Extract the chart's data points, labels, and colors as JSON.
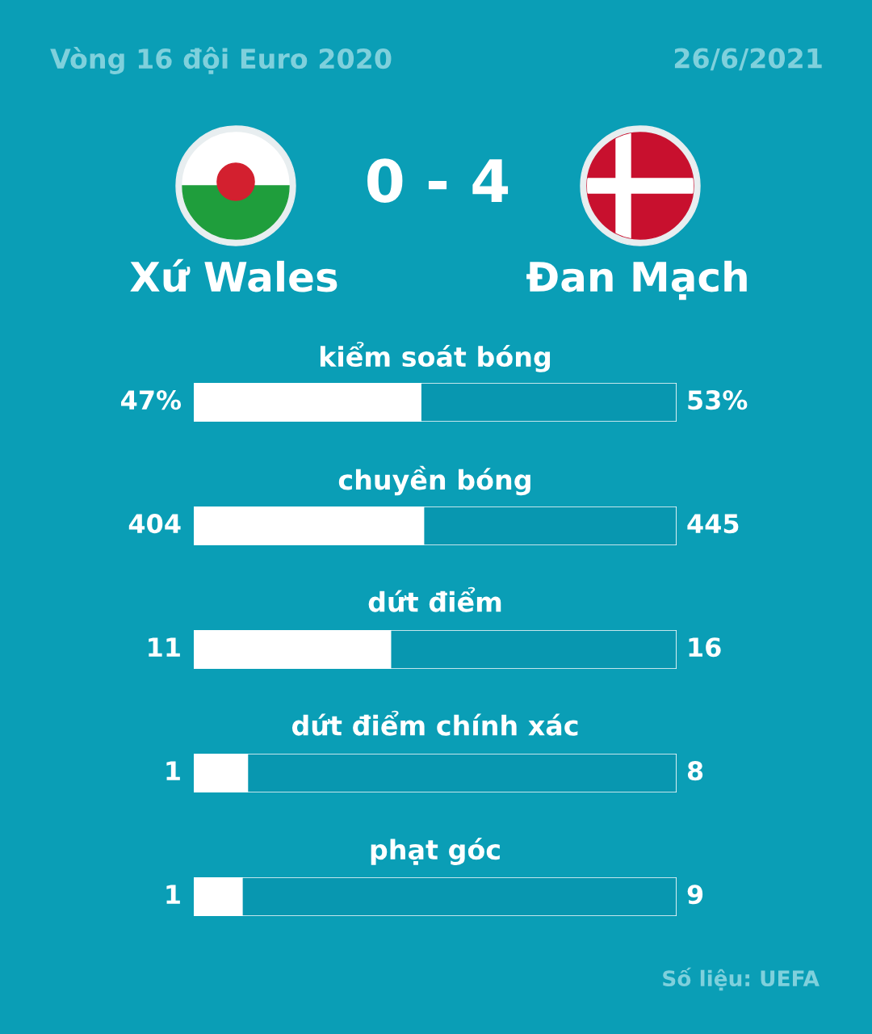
{
  "chart_data": [
    {
      "type": "bar",
      "orientation": "horizontal",
      "stacked": true,
      "legend": false,
      "tick_labels": false,
      "title": "Vòng 16 đội Euro 2020",
      "subtitle": "26/6/2021",
      "annotations": [
        "0 - 4",
        "Số liệu: UEFA"
      ],
      "categories": [
        "kiểm soát bóng"
      ],
      "xlim": [
        0,
        100
      ],
      "series": [
        {
          "name": "Xứ Wales",
          "color": "#ffffff",
          "values": [
            47
          ],
          "value_labels": [
            "47%"
          ]
        },
        {
          "name": "Đan Mạch",
          "color": "#0897b0",
          "values": [
            53
          ],
          "value_labels": [
            "53%"
          ]
        }
      ]
    },
    {
      "type": "bar",
      "orientation": "horizontal",
      "stacked": true,
      "legend": false,
      "tick_labels": false,
      "categories": [
        "chuyền bóng"
      ],
      "xlim": [
        0,
        849
      ],
      "data_labels": true,
      "series": [
        {
          "color": "#ffffff",
          "values": [
            404
          ]
        },
        {
          "color": "#0897b0",
          "values": [
            445
          ]
        }
      ]
    },
    {
      "type": "bar",
      "orientation": "horizontal",
      "stacked": true,
      "legend": false,
      "tick_labels": false,
      "categories": [
        "dứt điểm"
      ],
      "xlim": [
        0,
        27
      ],
      "data_labels": true,
      "series": [
        {
          "color": "#ffffff",
          "values": [
            11
          ]
        },
        {
          "color": "#0897b0",
          "values": [
            16
          ]
        }
      ]
    },
    {
      "type": "bar",
      "orientation": "horizontal",
      "stacked": true,
      "legend": false,
      "tick_labels": false,
      "categories": [
        "dứt điểm chính xác"
      ],
      "xlim": [
        0,
        9
      ],
      "data_labels": true,
      "series": [
        {
          "color": "#ffffff",
          "values": [
            1
          ]
        },
        {
          "color": "#0897b0",
          "values": [
            8
          ]
        }
      ]
    },
    {
      "type": "bar",
      "orientation": "horizontal",
      "stacked": true,
      "legend": false,
      "tick_labels": false,
      "categories": [
        "phạt góc"
      ],
      "xlim": [
        0,
        10
      ],
      "data_labels": true,
      "series": [
        {
          "color": "#ffffff",
          "values": [
            1
          ]
        },
        {
          "color": "#0897b0",
          "values": [
            9
          ]
        }
      ]
    }
  ]
}
